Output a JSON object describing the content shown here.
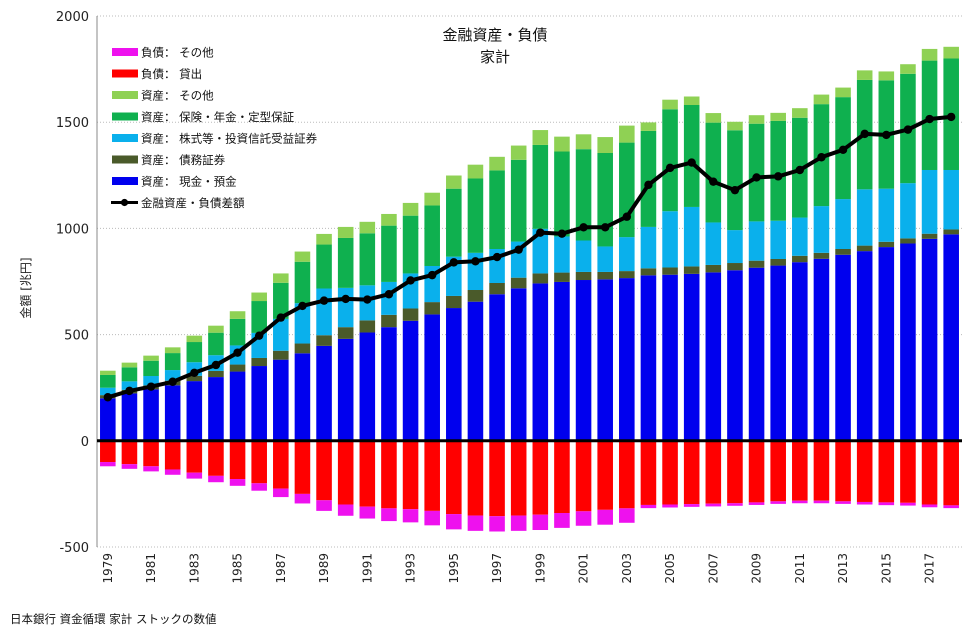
{
  "chart_data": {
    "type": "bar",
    "title": "金融資産・負債",
    "subtitle": "家計",
    "ylabel": "金額 [兆円]",
    "xlabel": "",
    "ylim": [
      -500,
      2000
    ],
    "yticks": [
      -500,
      0,
      500,
      1000,
      1500,
      2000
    ],
    "ytick_labels": [
      "-500",
      "0",
      "500",
      "1000",
      "1500",
      "2000"
    ],
    "grid": "dotted horizontal at 500 steps",
    "categories": [
      "1979",
      "1980",
      "1981",
      "1982",
      "1983",
      "1984",
      "1985",
      "1986",
      "1987",
      "1988",
      "1989",
      "1990",
      "1991",
      "1992",
      "1993",
      "1994",
      "1995",
      "1996",
      "1997",
      "1998",
      "1999",
      "2000",
      "2001",
      "2002",
      "2003",
      "2004",
      "2005",
      "2006",
      "2007",
      "2008",
      "2009",
      "2010",
      "2011",
      "2012",
      "2013",
      "2014",
      "2015",
      "2016",
      "2017",
      "2018"
    ],
    "xtick_labels": [
      "1979",
      "1981",
      "1983",
      "1985",
      "1987",
      "1989",
      "1991",
      "1993",
      "1995",
      "1997",
      "1999",
      "2001",
      "2003",
      "2005",
      "2007",
      "2009",
      "2011",
      "2013",
      "2015",
      "2017"
    ],
    "series": [
      {
        "name": "資産： 現金・預金",
        "stack": "asset",
        "color": "#0000ee",
        "values": [
          200,
          223,
          242,
          261,
          281,
          300,
          326,
          352,
          382,
          412,
          447,
          480,
          510,
          535,
          565,
          595,
          625,
          655,
          690,
          718,
          741,
          748,
          757,
          760,
          766,
          779,
          782,
          786,
          793,
          803,
          815,
          825,
          841,
          857,
          876,
          893,
          912,
          929,
          951,
          972
        ]
      },
      {
        "name": "資産： 債務証券",
        "stack": "asset",
        "color": "#4a5a2a",
        "values": [
          15,
          17,
          19,
          22,
          25,
          29,
          33,
          38,
          42,
          46,
          50,
          55,
          57,
          58,
          58,
          58,
          57,
          55,
          53,
          50,
          47,
          44,
          38,
          35,
          33,
          33,
          34,
          35,
          35,
          34,
          33,
          31,
          30,
          28,
          27,
          26,
          25,
          24,
          24,
          23
        ]
      },
      {
        "name": "資産： 株式等・投資信託受益証券",
        "stack": "asset",
        "color": "#0ab0ec",
        "values": [
          35,
          40,
          44,
          50,
          64,
          74,
          90,
          118,
          150,
          190,
          220,
          185,
          165,
          155,
          165,
          170,
          185,
          175,
          160,
          170,
          210,
          170,
          148,
          120,
          160,
          195,
          265,
          280,
          200,
          155,
          185,
          180,
          180,
          220,
          235,
          265,
          250,
          260,
          300,
          280
        ]
      },
      {
        "name": "資産： 保険・年金・定型保証",
        "stack": "asset",
        "color": "#0fb04f",
        "values": [
          60,
          66,
          72,
          80,
          95,
          106,
          125,
          150,
          170,
          195,
          207,
          235,
          245,
          265,
          272,
          285,
          320,
          350,
          370,
          385,
          395,
          400,
          430,
          440,
          445,
          452,
          480,
          480,
          470,
          470,
          460,
          470,
          470,
          480,
          480,
          515,
          510,
          515,
          515,
          525
        ]
      },
      {
        "name": "資産： その他",
        "stack": "asset",
        "color": "#8fd154",
        "values": [
          20,
          22,
          24,
          27,
          30,
          33,
          36,
          40,
          44,
          48,
          50,
          52,
          54,
          55,
          60,
          60,
          62,
          65,
          64,
          67,
          70,
          70,
          70,
          75,
          80,
          40,
          45,
          40,
          45,
          40,
          40,
          38,
          45,
          45,
          45,
          45,
          42,
          45,
          55,
          55
        ]
      },
      {
        "name": "負債： 貸出",
        "stack": "liability",
        "color": "#ff0000",
        "values": [
          -100,
          -110,
          -120,
          -135,
          -150,
          -165,
          -180,
          -200,
          -225,
          -250,
          -280,
          -300,
          -310,
          -318,
          -322,
          -330,
          -345,
          -352,
          -355,
          -352,
          -348,
          -340,
          -332,
          -325,
          -318,
          -302,
          -300,
          -298,
          -296,
          -294,
          -290,
          -285,
          -282,
          -282,
          -285,
          -288,
          -290,
          -292,
          -300,
          -304
        ]
      },
      {
        "name": "負債： その他",
        "stack": "liability",
        "color": "#ee11ee",
        "values": [
          -20,
          -22,
          -24,
          -25,
          -28,
          -30,
          -32,
          -35,
          -40,
          -45,
          -50,
          -53,
          -56,
          -60,
          -62,
          -68,
          -72,
          -72,
          -72,
          -72,
          -72,
          -70,
          -68,
          -70,
          -68,
          -15,
          -14,
          -13,
          -13,
          -12,
          -12,
          -12,
          -12,
          -12,
          -12,
          -12,
          -13,
          -13,
          -13,
          -13
        ]
      }
    ],
    "line": {
      "name": "金融資産・負債差額",
      "color": "#000000",
      "values": [
        205,
        235,
        255,
        278,
        320,
        357,
        415,
        495,
        580,
        635,
        660,
        668,
        665,
        690,
        755,
        780,
        840,
        845,
        865,
        900,
        980,
        975,
        1005,
        1005,
        1055,
        1205,
        1285,
        1310,
        1220,
        1180,
        1240,
        1245,
        1275,
        1335,
        1370,
        1445,
        1440,
        1465,
        1515,
        1525
      ]
    },
    "legend": {
      "placement": "top-left",
      "entries": [
        "負債： その他",
        "負債： 貸出",
        "資産： その他",
        "資産： 保険・年金・定型保証",
        "資産： 株式等・投資信託受益証券",
        "資産： 債務証券",
        "資産： 現金・預金",
        "金融資産・負債差額"
      ]
    },
    "source_note": "日本銀行 資金循環 家計 ストックの数値"
  }
}
